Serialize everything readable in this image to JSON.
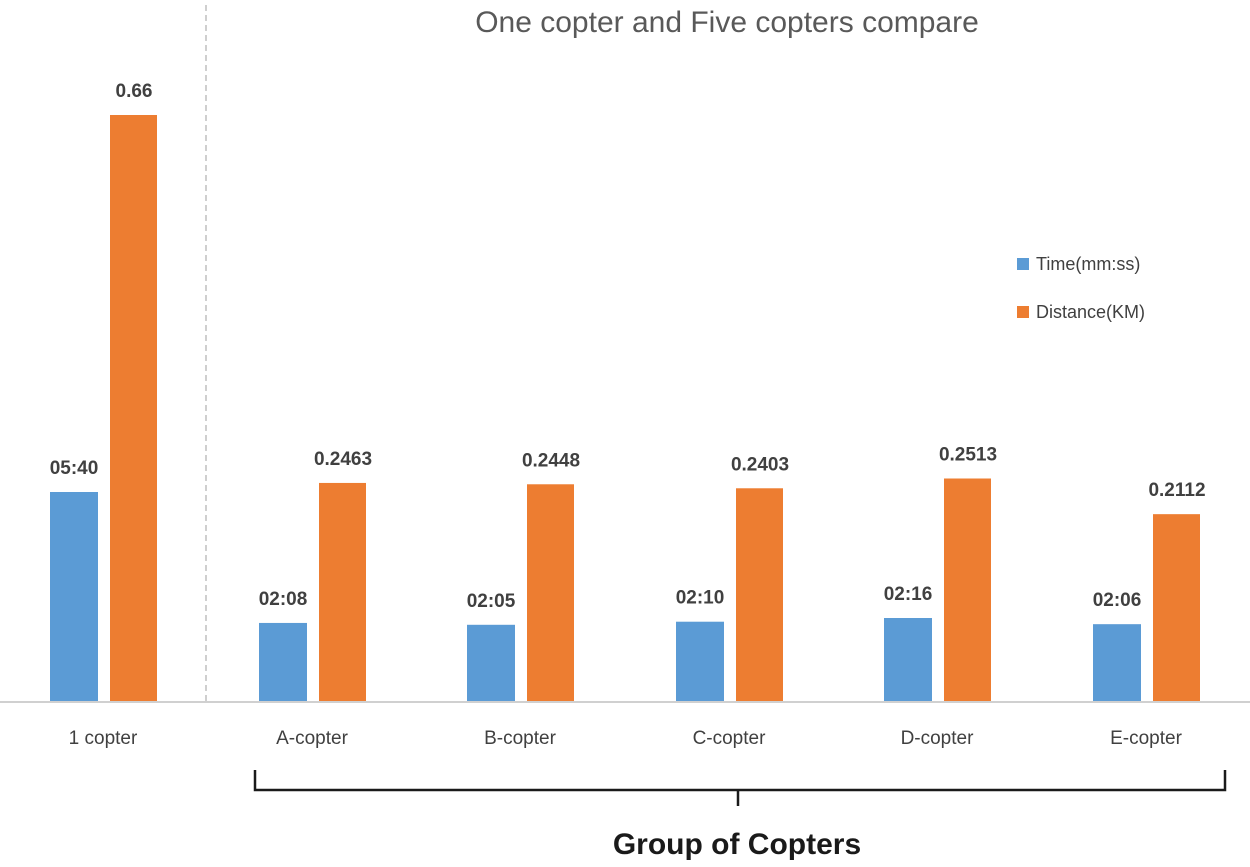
{
  "chart_data": {
    "type": "bar",
    "title": "One copter and Five copters compare",
    "xlabel": "Group of Copters",
    "categories": [
      "1 copter",
      "A-copter",
      "B-copter",
      "C-copter",
      "D-copter",
      "E-copter"
    ],
    "series": [
      {
        "name": "Time(mm:ss)",
        "color": "#5B9BD5",
        "labels": [
          "05:40",
          "02:08",
          "02:05",
          "02:10",
          "02:16",
          "02:06"
        ],
        "values_seconds": [
          340,
          128,
          125,
          130,
          136,
          126
        ]
      },
      {
        "name": "Distance(KM)",
        "color": "#ED7D31",
        "labels": [
          "0.66",
          "0.2463",
          "0.2448",
          "0.2403",
          "0.2513",
          "0.2112"
        ],
        "values": [
          0.66,
          0.2463,
          0.2448,
          0.2403,
          0.2513,
          0.2112
        ]
      }
    ],
    "legend": "right",
    "grid": false,
    "ylim_distance": [
      0,
      0.66
    ],
    "ylim_time_seconds": [
      0,
      340
    ]
  }
}
